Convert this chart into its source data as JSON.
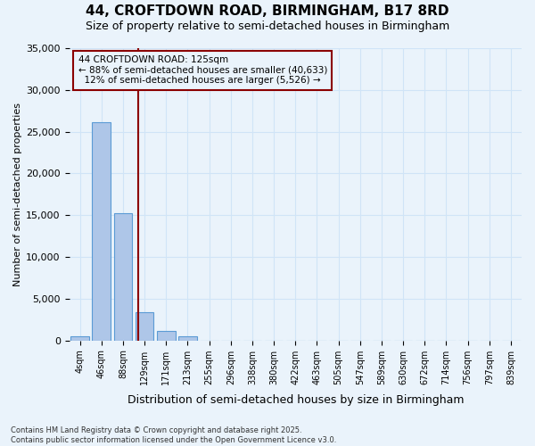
{
  "title": "44, CROFTDOWN ROAD, BIRMINGHAM, B17 8RD",
  "subtitle": "Size of property relative to semi-detached houses in Birmingham",
  "xlabel": "Distribution of semi-detached houses by size in Birmingham",
  "ylabel": "Number of semi-detached properties",
  "property_label": "44 CROFTDOWN ROAD: 125sqm",
  "pct_smaller": 88,
  "n_smaller": 40633,
  "pct_larger": 12,
  "n_larger": 5526,
  "bin_labels": [
    "4sqm",
    "46sqm",
    "88sqm",
    "129sqm",
    "171sqm",
    "213sqm",
    "255sqm",
    "296sqm",
    "338sqm",
    "380sqm",
    "422sqm",
    "463sqm",
    "505sqm",
    "547sqm",
    "589sqm",
    "630sqm",
    "672sqm",
    "714sqm",
    "756sqm",
    "797sqm",
    "839sqm"
  ],
  "bar_values": [
    500,
    26100,
    15200,
    3400,
    1150,
    500,
    0,
    0,
    0,
    0,
    0,
    0,
    0,
    0,
    0,
    0,
    0,
    0,
    0,
    0,
    0
  ],
  "bar_color": "#aec6e8",
  "bar_edge_color": "#5b9bd5",
  "vline_color": "#8b0000",
  "grid_color": "#d0e4f7",
  "bg_color": "#eaf3fb",
  "ylim": [
    0,
    35000
  ],
  "yticks": [
    0,
    5000,
    10000,
    15000,
    20000,
    25000,
    30000,
    35000
  ],
  "vline_position": 2.72,
  "footer_line1": "Contains HM Land Registry data © Crown copyright and database right 2025.",
  "footer_line2": "Contains public sector information licensed under the Open Government Licence v3.0."
}
